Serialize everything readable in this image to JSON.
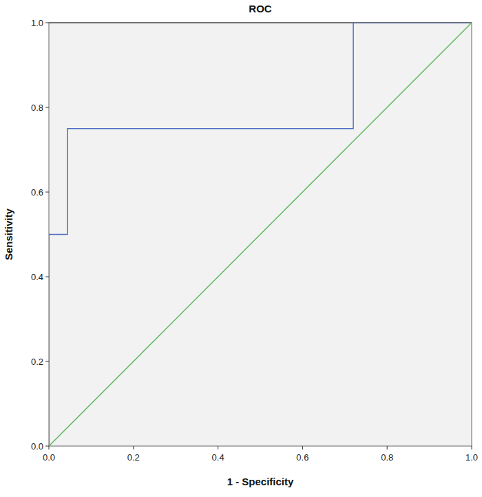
{
  "chart_data": {
    "type": "line",
    "title": "ROC",
    "x_label": "1 - Specificity",
    "y_label": "Sensitivity",
    "xlim": [
      0,
      1
    ],
    "ylim": [
      0,
      1
    ],
    "xticks": [
      {
        "value": 0,
        "label": "0.0"
      },
      0.2,
      0.4,
      0.6,
      0.8,
      {
        "value": 1,
        "label": "1.0"
      }
    ],
    "yticks": [
      {
        "value": 0,
        "label": "0.0"
      },
      0.2,
      0.4,
      0.6,
      0.8,
      {
        "value": 1,
        "label": "1.0"
      }
    ],
    "grid": false,
    "series": [
      {
        "color": "#4a6cc4",
        "line_style": "step",
        "x": [
          0,
          0,
          0.044,
          0.044,
          0.72,
          0.72,
          1
        ],
        "values": [
          0,
          0.5,
          0.5,
          0.75,
          0.75,
          1,
          1
        ]
      },
      {
        "color": "#5cb85c",
        "line_style": "solid",
        "x": [
          0,
          1
        ],
        "values": [
          0,
          1
        ]
      }
    ]
  }
}
